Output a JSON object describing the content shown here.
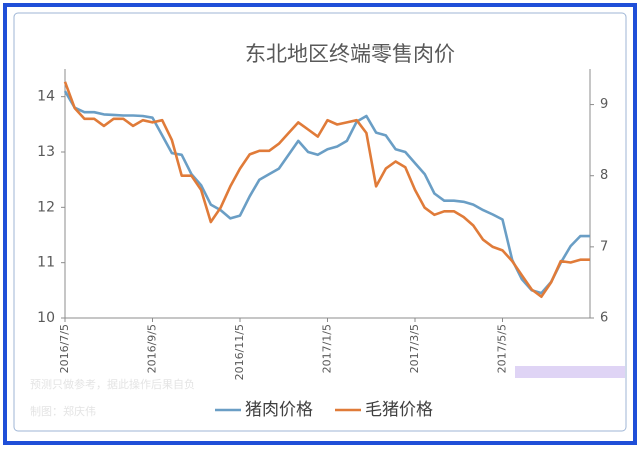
{
  "chart_data": {
    "type": "line",
    "title": "东北地区终端零售肉价",
    "categories": [
      "2016/7/5",
      null,
      null,
      null,
      null,
      null,
      null,
      null,
      null,
      "2016/9/5",
      null,
      null,
      null,
      null,
      null,
      null,
      null,
      null,
      "2016/11/5",
      null,
      null,
      null,
      null,
      null,
      null,
      null,
      null,
      "2017/1/5",
      null,
      null,
      null,
      null,
      null,
      null,
      null,
      null,
      "2017/3/5",
      null,
      null,
      null,
      null,
      null,
      null,
      null,
      null,
      "2017/5/5",
      null,
      null,
      null,
      null,
      null,
      null,
      null,
      null,
      null
    ],
    "series": [
      {
        "name": "猪肉价格",
        "color": "#6a9ec5",
        "axis": "y",
        "values": [
          14.1,
          13.8,
          13.72,
          13.72,
          13.68,
          13.67,
          13.66,
          13.66,
          13.65,
          13.62,
          13.3,
          12.98,
          12.95,
          12.6,
          12.4,
          12.05,
          11.95,
          11.8,
          11.85,
          12.2,
          12.5,
          12.6,
          12.7,
          12.95,
          13.2,
          13.0,
          12.95,
          13.05,
          13.1,
          13.2,
          13.55,
          13.65,
          13.35,
          13.3,
          13.05,
          13.0,
          12.8,
          12.6,
          12.25,
          12.12,
          12.12,
          12.1,
          12.05,
          11.95,
          11.87,
          11.78,
          11.05,
          10.7,
          10.5,
          10.45,
          10.65,
          11.0,
          11.3,
          11.48,
          11.48
        ]
      },
      {
        "name": "毛猪价格",
        "color": "#e07b39",
        "axis": "y2",
        "values": [
          9.32,
          8.95,
          8.8,
          8.8,
          8.7,
          8.8,
          8.8,
          8.7,
          8.78,
          8.75,
          8.78,
          8.5,
          8.0,
          8.0,
          7.8,
          7.35,
          7.55,
          7.85,
          8.1,
          8.3,
          8.35,
          8.35,
          8.45,
          8.6,
          8.75,
          8.65,
          8.55,
          8.78,
          8.72,
          8.75,
          8.78,
          8.6,
          7.85,
          8.1,
          8.2,
          8.12,
          7.8,
          7.55,
          7.45,
          7.5,
          7.5,
          7.42,
          7.3,
          7.1,
          7.0,
          6.95,
          6.8,
          6.6,
          6.4,
          6.3,
          6.5,
          6.8,
          6.78,
          6.82,
          6.82
        ]
      }
    ],
    "ylim": [
      10,
      14.5
    ],
    "yticks": [
      10,
      11,
      12,
      13,
      14
    ],
    "y2lim": [
      6,
      9.5
    ],
    "y2ticks": [
      6,
      7,
      8,
      9
    ],
    "legend": "bottom",
    "annotations": [
      "预测只做参考，据此操作后果自负",
      "制图：郑庆伟"
    ]
  }
}
